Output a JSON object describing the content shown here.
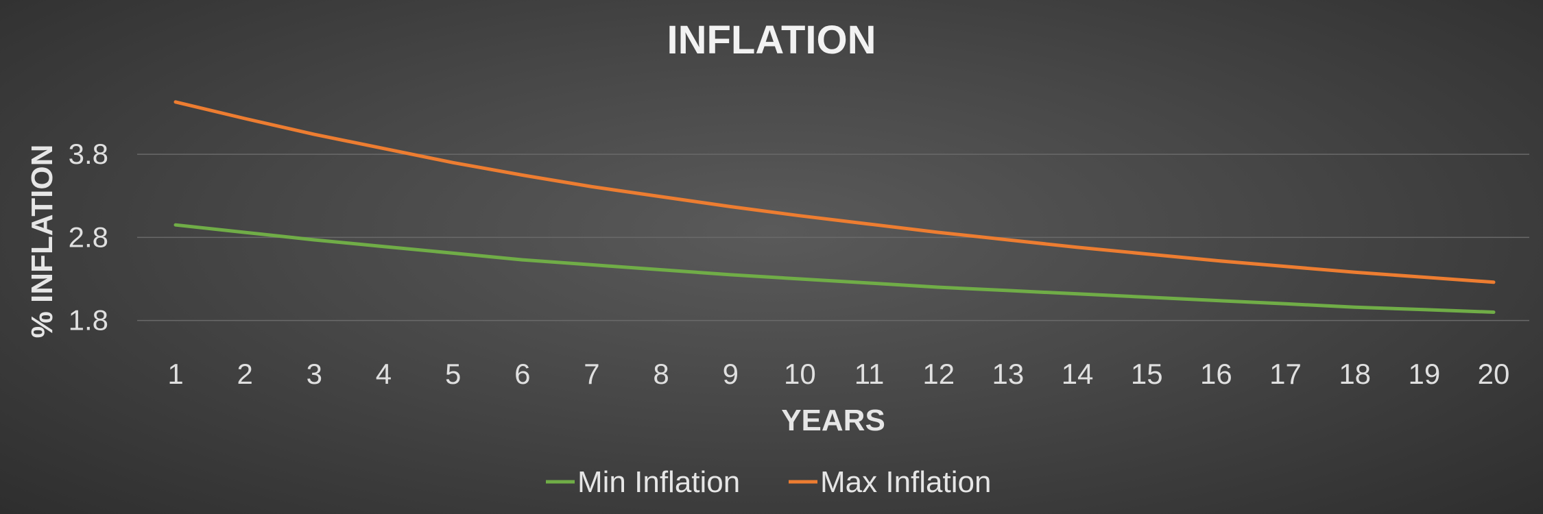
{
  "chart_data": {
    "type": "line",
    "title": "INFLATION",
    "xlabel": "YEARS",
    "ylabel": "% INFLATION",
    "categories": [
      "1",
      "2",
      "3",
      "4",
      "5",
      "6",
      "7",
      "8",
      "9",
      "10",
      "11",
      "12",
      "13",
      "14",
      "15",
      "16",
      "17",
      "18",
      "19",
      "20"
    ],
    "yticks": [
      "1.8",
      "2.8",
      "3.8"
    ],
    "ylim": [
      1.45,
      4.75
    ],
    "grid": true,
    "legend_position": "bottom",
    "series": [
      {
        "name": "Min Inflation",
        "color": "#70ad47",
        "values": [
          2.95,
          2.86,
          2.77,
          2.69,
          2.61,
          2.53,
          2.47,
          2.41,
          2.35,
          2.3,
          2.25,
          2.2,
          2.16,
          2.12,
          2.08,
          2.04,
          2.0,
          1.96,
          1.93,
          1.9
        ]
      },
      {
        "name": "Max Inflation",
        "color": "#ed7d31",
        "values": [
          4.43,
          4.23,
          4.04,
          3.87,
          3.7,
          3.55,
          3.41,
          3.29,
          3.17,
          3.06,
          2.96,
          2.86,
          2.77,
          2.68,
          2.6,
          2.52,
          2.45,
          2.38,
          2.32,
          2.26
        ]
      }
    ]
  }
}
